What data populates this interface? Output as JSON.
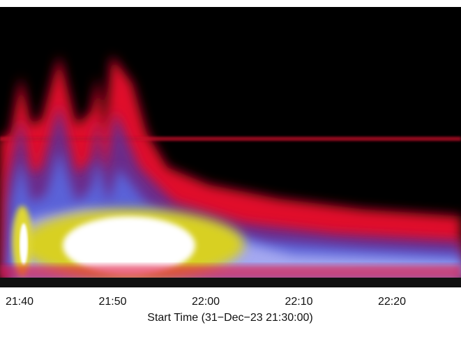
{
  "chart_data": {
    "type": "spectrogram",
    "xticks": [
      "21:40",
      "21:50",
      "22:00",
      "22:10",
      "22:20"
    ],
    "xlabel": "Start Time (31−Dec−23 21:30:00)"
  }
}
